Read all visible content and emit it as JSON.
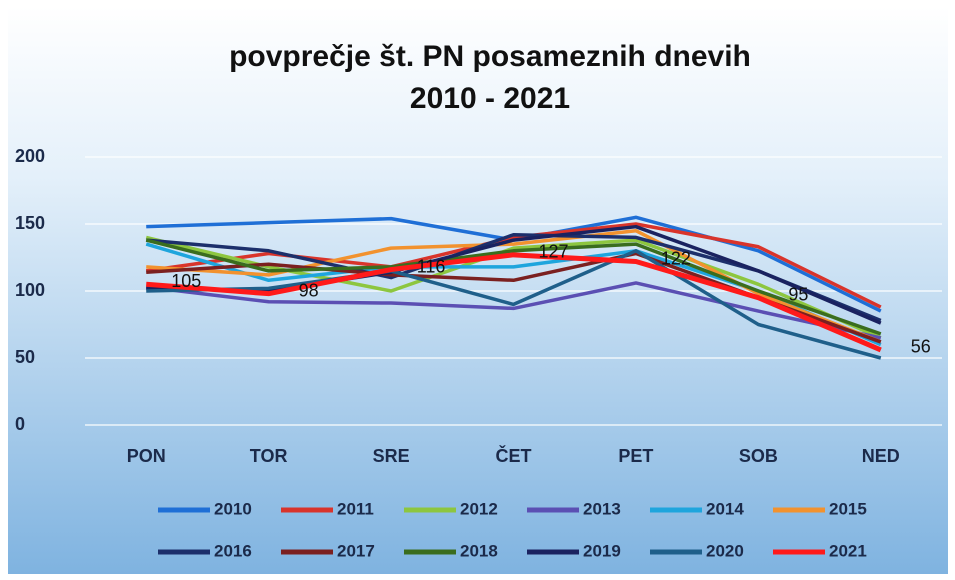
{
  "chart_data": {
    "type": "line",
    "title": "povprečje št. PN posameznih dnevih",
    "subtitle": "2010 - 2021",
    "categories": [
      "PON",
      "TOR",
      "SRE",
      "ČET",
      "PET",
      "SOB",
      "NED"
    ],
    "ylim": [
      0,
      200
    ],
    "yticks": [
      0,
      50,
      100,
      150,
      200
    ],
    "grid": true,
    "legend": "bottom",
    "series": [
      {
        "name": "2010",
        "color": "#1f6fd6",
        "values": [
          148,
          151,
          154,
          138,
          155,
          130,
          85
        ]
      },
      {
        "name": "2011",
        "color": "#d9342b",
        "values": [
          115,
          128,
          118,
          140,
          150,
          133,
          88
        ]
      },
      {
        "name": "2012",
        "color": "#8dc63f",
        "values": [
          140,
          118,
          100,
          132,
          138,
          105,
          65
        ]
      },
      {
        "name": "2013",
        "color": "#5b4fb3",
        "values": [
          103,
          92,
          91,
          87,
          106,
          85,
          65
        ]
      },
      {
        "name": "2014",
        "color": "#1ea5dd",
        "values": [
          135,
          108,
          118,
          118,
          130,
          100,
          60
        ]
      },
      {
        "name": "2015",
        "color": "#f2922e",
        "values": [
          118,
          112,
          132,
          135,
          145,
          98,
          62
        ]
      },
      {
        "name": "2016",
        "color": "#1c2f6b",
        "values": [
          138,
          130,
          110,
          142,
          140,
          115,
          78
        ]
      },
      {
        "name": "2017",
        "color": "#7b2020",
        "values": [
          114,
          120,
          112,
          108,
          128,
          95,
          62
        ]
      },
      {
        "name": "2018",
        "color": "#3a6d1e",
        "values": [
          138,
          115,
          118,
          130,
          135,
          100,
          68
        ]
      },
      {
        "name": "2019",
        "color": "#1a2260",
        "values": [
          102,
          100,
          114,
          138,
          148,
          115,
          76
        ]
      },
      {
        "name": "2020",
        "color": "#1f5f8a",
        "values": [
          100,
          102,
          115,
          90,
          130,
          75,
          50
        ]
      },
      {
        "name": "2021",
        "color": "#ff1a1a",
        "values": [
          105,
          98,
          116,
          127,
          122,
          95,
          56
        ],
        "data_labels": true
      }
    ]
  }
}
